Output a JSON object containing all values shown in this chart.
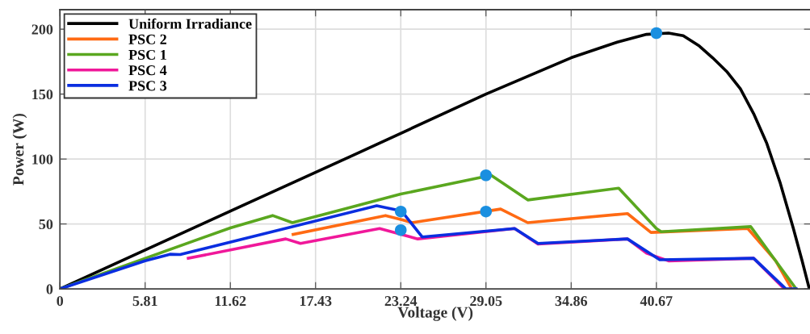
{
  "chart_data": {
    "type": "line",
    "xlabel": "Voltage (V)",
    "ylabel": "Power (W)",
    "xlim": [
      0,
      51.2
    ],
    "ylim": [
      0,
      215
    ],
    "xticks": [
      0,
      5.81,
      11.62,
      17.43,
      23.24,
      29.05,
      34.86,
      40.67
    ],
    "yticks": [
      0,
      50,
      100,
      150,
      200
    ],
    "grid": true,
    "legend": "top left",
    "marker": "none",
    "line_style": "solid",
    "series": [
      {
        "name": "Uniform Irradiance",
        "color": "#000000",
        "x": [
          0,
          10,
          20,
          29.05,
          34.86,
          38,
          40,
          41.5,
          42.5,
          43.6,
          44.5,
          45.5,
          46.4,
          47.3,
          48.2,
          49.1,
          50.0,
          50.6,
          51.1
        ],
        "values": [
          0,
          51.6,
          103,
          150,
          178,
          190,
          196,
          197,
          195,
          187,
          178,
          167,
          154,
          135,
          112,
          82,
          47,
          22,
          0
        ]
      },
      {
        "name": "PSC 2",
        "color": "#ff6a13",
        "x": [
          15.9,
          22.2,
          23.4,
          24.0,
          30.05,
          31.9,
          38.7,
          40.3,
          46.9,
          48.8,
          49.9
        ],
        "values": [
          42,
          56.5,
          53,
          51,
          61.5,
          51,
          58,
          43.5,
          46.5,
          21.7,
          0
        ]
      },
      {
        "name": "PSC 1",
        "color": "#5aa71f",
        "x": [
          0,
          11.62,
          14.5,
          15.85,
          23.24,
          29.4,
          31.9,
          38.1,
          40.67,
          41.0,
          47.1,
          49.1,
          50.2
        ],
        "values": [
          0,
          47,
          56.5,
          51,
          73,
          87.5,
          68.5,
          77.6,
          46.5,
          44,
          48,
          17,
          0
        ]
      },
      {
        "name": "PSC 4",
        "color": "#f0189a",
        "x": [
          8.75,
          15.4,
          16.4,
          21.8,
          24.4,
          31.0,
          32.6,
          38.7,
          40.0,
          41.5,
          47.3,
          49.4
        ],
        "values": [
          23.6,
          38.5,
          35,
          46.5,
          38.5,
          46.5,
          34.5,
          38.5,
          27.5,
          21.6,
          23.6,
          0
        ]
      },
      {
        "name": "PSC 3",
        "color": "#0a2ee0",
        "x": [
          0,
          5.81,
          7.5,
          8.2,
          21.6,
          23.3,
          24.7,
          31.0,
          32.6,
          38.7,
          40.9,
          47.3,
          49.5,
          50.2
        ],
        "values": [
          0,
          21.7,
          26.7,
          26.5,
          64,
          60,
          40,
          46.5,
          35,
          38.5,
          22.4,
          23.6,
          0,
          0
        ]
      },
      {
        "type": "scatter",
        "color": "#1a8fe0",
        "marker": "circle",
        "x": [
          40.67,
          29.05,
          29.05,
          23.24,
          23.24
        ],
        "values": [
          197,
          87.5,
          59.6,
          59.6,
          45.3
        ]
      }
    ]
  }
}
